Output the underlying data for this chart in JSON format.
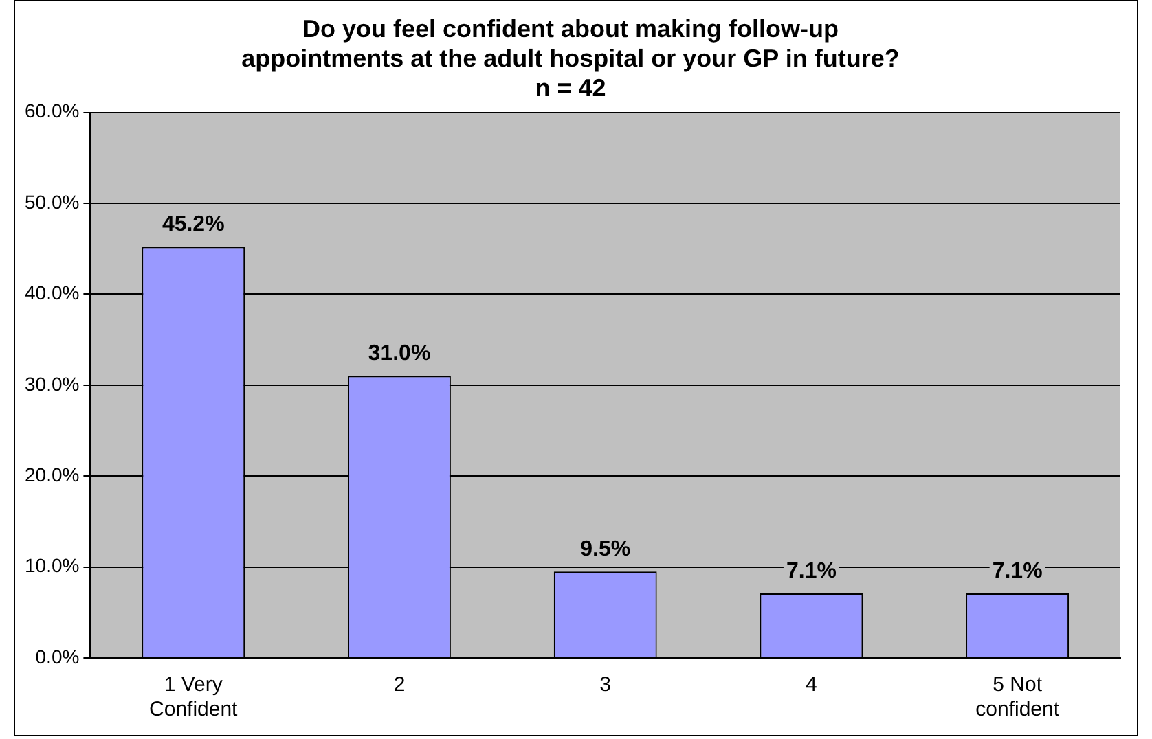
{
  "chart_data": {
    "type": "bar",
    "title": [
      "Do you feel confident about making follow-up",
      "appointments at the adult hospital or your GP in future?",
      "n = 42"
    ],
    "categories": [
      "1 Very Confident",
      "2",
      "3",
      "4",
      "5 Not confident"
    ],
    "values": [
      45.2,
      31.0,
      9.5,
      7.1,
      7.1
    ],
    "value_labels": [
      "45.2%",
      "31.0%",
      "9.5%",
      "7.1%",
      "7.1%"
    ],
    "color": "#9999ff",
    "ylim": [
      0,
      60
    ],
    "yticks": [
      {
        "value": 0,
        "label": "0.0%"
      },
      {
        "value": 10,
        "label": "10.0%"
      },
      {
        "value": 20,
        "label": "20.0%"
      },
      {
        "value": 30,
        "label": "30.0%"
      },
      {
        "value": 40,
        "label": "40.0%"
      },
      {
        "value": 50,
        "label": "50.0%"
      },
      {
        "value": 60,
        "label": "60.0%"
      }
    ],
    "grid": "y",
    "legend": false
  }
}
